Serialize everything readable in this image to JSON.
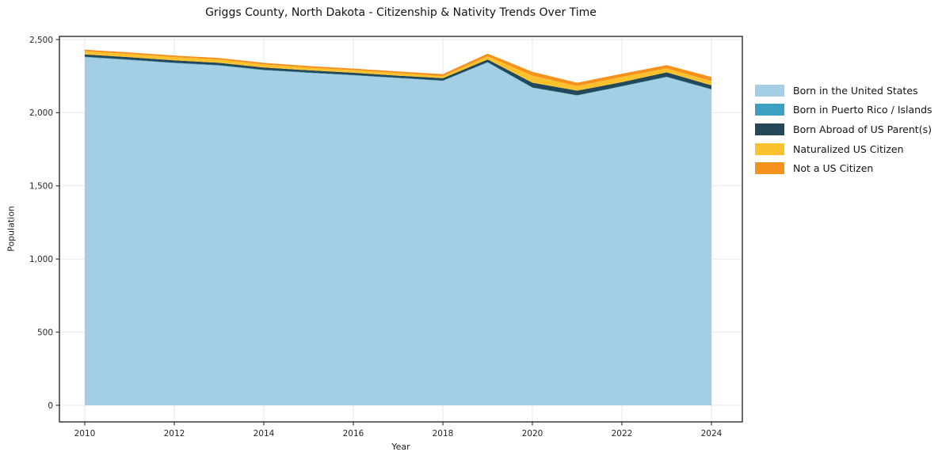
{
  "chart_data": {
    "type": "area",
    "stacked": true,
    "title": "Griggs County, North Dakota - Citizenship & Nativity Trends Over Time",
    "xlabel": "Year",
    "ylabel": "Population",
    "x": [
      2010,
      2011,
      2012,
      2013,
      2014,
      2015,
      2016,
      2017,
      2018,
      2019,
      2020,
      2021,
      2022,
      2023,
      2024
    ],
    "series": [
      {
        "name": "Born in the United States",
        "color": "#a4cee4",
        "values": [
          2380,
          2360,
          2339,
          2322,
          2290,
          2272,
          2255,
          2236,
          2217,
          2343,
          2170,
          2117,
          2179,
          2243,
          2158
        ]
      },
      {
        "name": "Born in Puerto Rico / Islands",
        "color": "#3d9fc1",
        "values": [
          3,
          3,
          3,
          3,
          3,
          3,
          3,
          3,
          3,
          3,
          3,
          3,
          3,
          3,
          3
        ]
      },
      {
        "name": "Born Abroad of US Parent(s)",
        "color": "#23485a",
        "values": [
          16,
          17,
          16,
          16,
          16,
          15,
          15,
          14,
          16,
          18,
          32,
          31,
          27,
          30,
          26
        ]
      },
      {
        "name": "Naturalized US Citizen",
        "color": "#fcc22d",
        "values": [
          21,
          21,
          22,
          22,
          21,
          18,
          18,
          18,
          14,
          22,
          48,
          31,
          36,
          27,
          29
        ]
      },
      {
        "name": "Not a US Citizen",
        "color": "#f5921e",
        "values": [
          11,
          11,
          11,
          11,
          11,
          11,
          11,
          11,
          14,
          18,
          27,
          23,
          22,
          22,
          28
        ]
      }
    ],
    "x_ticks": [
      2010,
      2012,
      2014,
      2016,
      2018,
      2020,
      2022,
      2024
    ],
    "x_tick_labels": [
      "2010",
      "2012",
      "2014",
      "2016",
      "2018",
      "2020",
      "2022",
      "2024"
    ],
    "y_ticks": [
      0,
      500,
      1000,
      1500,
      2000,
      2500
    ],
    "y_tick_labels": [
      "0",
      "500",
      "1,000",
      "1,500",
      "2,000",
      "2,500"
    ],
    "ylim": [
      0,
      2520
    ],
    "xlim_years": [
      2009.43,
      2024.69
    ],
    "grid": true,
    "legend_position": "right",
    "colors": {
      "grid": "#e7e7e7",
      "spine": "#2a2a2a",
      "tick_label": "#262626"
    }
  }
}
